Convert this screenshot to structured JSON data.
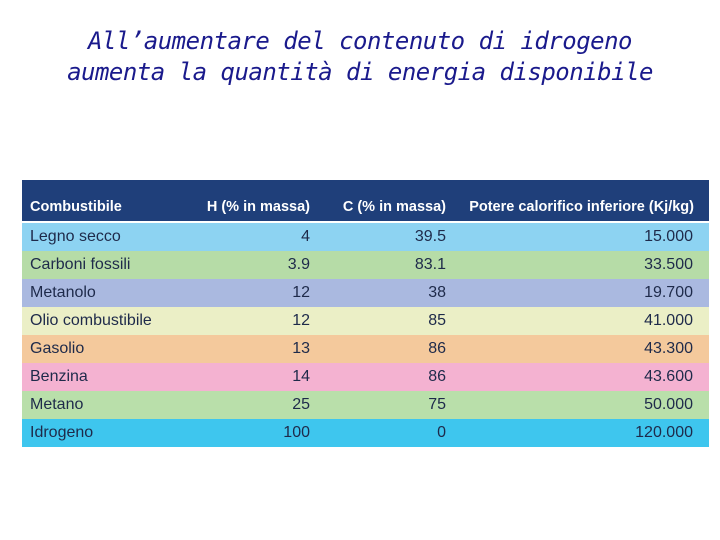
{
  "title": {
    "line1": "All’aumentare del contenuto di idrogeno",
    "line2": "aumenta la quantità di energia disponibile"
  },
  "table": {
    "headers": {
      "name": "Combustibile",
      "h": "H (% in massa)",
      "c": "C (% in massa)",
      "pci": "Potere  calorifico inferiore (Kj/kg)"
    },
    "rows": [
      {
        "name": "Legno secco",
        "h": "4",
        "c": "39.5",
        "pci": "15.000",
        "color": "#8dd3f2"
      },
      {
        "name": "Carboni fossili",
        "h": "3.9",
        "c": "83.1",
        "pci": "33.500",
        "color": "#b6dca7"
      },
      {
        "name": "Metanolo",
        "h": "12",
        "c": "38",
        "pci": "19.700",
        "color": "#aab9e0"
      },
      {
        "name": "Olio combustibile",
        "h": "12",
        "c": "85",
        "pci": "41.000",
        "color": "#ebefc6"
      },
      {
        "name": "Gasolio",
        "h": "13",
        "c": "86",
        "pci": "43.300",
        "color": "#f4c99c"
      },
      {
        "name": "Benzina",
        "h": "14",
        "c": "86",
        "pci": "43.600",
        "color": "#f4b2d1"
      },
      {
        "name": "Metano",
        "h": "25",
        "c": "75",
        "pci": "50.000",
        "color": "#b9dfaa"
      },
      {
        "name": "Idrogeno",
        "h": "100",
        "c": "0",
        "pci": "120.000",
        "color": "#3ec6ee"
      }
    ]
  }
}
